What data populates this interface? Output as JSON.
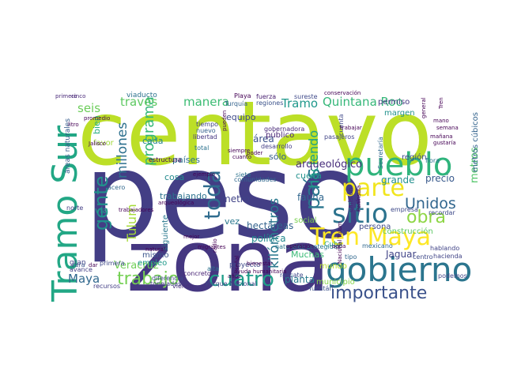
{
  "word_cloud": {
    "background_color": "#ffffff",
    "words": [
      {
        "text": "centavo",
        "color": "#bcdf27"
      },
      {
        "text": "peso",
        "color": "#433e85"
      },
      {
        "text": "zona",
        "color": "#453781"
      },
      {
        "text": "Tramo Sur",
        "color": "#22a785"
      },
      {
        "text": "gobierno",
        "color": "#2b758e"
      },
      {
        "text": "pueblo",
        "color": "#2fb47c"
      },
      {
        "text": "sitio",
        "color": "#2c738e"
      },
      {
        "text": "parte",
        "color": "#f1e51d"
      },
      {
        "text": "Tren Maya",
        "color": "#fde725"
      },
      {
        "text": "cuatro",
        "color": "#1f9e89"
      },
      {
        "text": "país",
        "color": "#2a768e"
      },
      {
        "text": "toda",
        "color": "#2f6c8e"
      },
      {
        "text": "gente",
        "color": "#21918c"
      },
      {
        "text": "trabajo",
        "color": "#75d054"
      },
      {
        "text": "importante",
        "color": "#3b528b"
      },
      {
        "text": "obra",
        "color": "#8ed645"
      },
      {
        "text": "Unidos",
        "color": "#31668e"
      },
      {
        "text": "millones",
        "color": "#2d708e"
      },
      {
        "text": "kilómetros",
        "color": "#2a788e"
      },
      {
        "text": "programa",
        "color": "#35b779"
      },
      {
        "text": "Tramo",
        "color": "#1f988b"
      },
      {
        "text": "Quintana Roo",
        "color": "#35b779"
      },
      {
        "text": "manera",
        "color": "#3dbc74"
      },
      {
        "text": "través",
        "color": "#5ec962"
      },
      {
        "text": "haciendo",
        "color": "#1fa088"
      },
      {
        "text": "Tulum",
        "color": "#a5db36"
      },
      {
        "text": "Maya",
        "color": "#31688e"
      },
      {
        "text": "arqueológico",
        "color": "#472d7b"
      },
      {
        "text": "seis",
        "color": "#6ccd5a"
      },
      {
        "text": "metros",
        "color": "#52c569"
      },
      {
        "text": "Veracruz",
        "color": "#70cf57"
      },
      {
        "text": "política",
        "color": "#23898e"
      },
      {
        "text": "metro",
        "color": "#404387"
      },
      {
        "text": "hectáreas",
        "color": "#33638d"
      },
      {
        "text": "Jaguar",
        "color": "#414487"
      },
      {
        "text": "planta",
        "color": "#297b8e"
      },
      {
        "text": "grande",
        "color": "#218f8d"
      },
      {
        "text": "fauna",
        "color": "#31678e"
      },
      {
        "text": "trabajando",
        "color": "#2c728e"
      },
      {
        "text": "cosa",
        "color": "#238a8d"
      },
      {
        "text": "precio",
        "color": "#38598c"
      },
      {
        "text": "región",
        "color": "#3e4a89"
      },
      {
        "text": "construcción",
        "color": "#5cc863"
      },
      {
        "text": "Muchas",
        "color": "#3aba76"
      },
      {
        "text": "municipio",
        "color": "#86d549"
      },
      {
        "text": "cueva",
        "color": "#21918c"
      },
      {
        "text": "social",
        "color": "#7ad151"
      },
      {
        "text": "sólo",
        "color": "#355f8d"
      },
      {
        "text": "área",
        "color": "#3b528b"
      },
      {
        "text": "permiso",
        "color": "#453882"
      },
      {
        "text": "margen",
        "color": "#21918c"
      },
      {
        "text": "metros cúbicos",
        "color": "#33638d"
      },
      {
        "text": "equipo",
        "color": "#3e4989"
      },
      {
        "text": "países",
        "color": "#2d708e"
      },
      {
        "text": "cada",
        "color": "#25848e"
      },
      {
        "text": "vía",
        "color": "#1f9e89"
      },
      {
        "text": "vez",
        "color": "#2a788e"
      },
      {
        "text": "mismo",
        "color": "#3a548c"
      },
      {
        "text": "empleo",
        "color": "#1f998a"
      },
      {
        "text": "Cuba",
        "color": "#21a685"
      },
      {
        "text": "público",
        "color": "#482475"
      },
      {
        "text": "desarrollo",
        "color": "#433e85"
      },
      {
        "text": "áreas naturales",
        "color": "#365c8d"
      },
      {
        "text": "bien",
        "color": "#26ad81"
      },
      {
        "text": "favor",
        "color": "#a0da39"
      },
      {
        "text": "siguiente",
        "color": "#2a788e"
      },
      {
        "text": "mundo",
        "color": "#b5de2b"
      },
      {
        "text": "persona",
        "color": "#3e4989"
      },
      {
        "text": "proyecto",
        "color": "#3e4a89"
      },
      {
        "text": "siete",
        "color": "#2c728e"
      },
      {
        "text": "comunidades",
        "color": "#31688e"
      },
      {
        "text": "total",
        "color": "#2c728e"
      },
      {
        "text": "gran",
        "color": "#414487"
      },
      {
        "text": "Yucatán",
        "color": "#3b528b"
      },
      {
        "text": "Secretaría",
        "color": "#31688e"
      },
      {
        "text": "tipo",
        "color": "#31688e"
      },
      {
        "text": "fuerza",
        "color": "#482071"
      },
      {
        "text": "Playa",
        "color": "#440154"
      },
      {
        "text": "viaducto",
        "color": "#2c728e"
      },
      {
        "text": "libertad",
        "color": "#453581"
      },
      {
        "text": "tiempo",
        "color": "#414487"
      },
      {
        "text": "nuevo",
        "color": "#355f8d"
      },
      {
        "text": "gobernadora",
        "color": "#482878"
      },
      {
        "text": "regiones",
        "color": "#3b528b"
      },
      {
        "text": "Turquía",
        "color": "#33638d"
      },
      {
        "text": "sureste",
        "color": "#3e4989"
      },
      {
        "text": "pasajeros",
        "color": "#414487"
      },
      {
        "text": "cuenta",
        "color": "#3f4788"
      },
      {
        "text": "estructura",
        "color": "#440154"
      },
      {
        "text": "naturales protegidas",
        "color": "#2a788e"
      },
      {
        "text": "mexicano",
        "color": "#31688e"
      },
      {
        "text": "rescate",
        "color": "#3e4989"
      },
      {
        "text": "concreto",
        "color": "#482475"
      },
      {
        "text": "viendo",
        "color": "#472f7d"
      },
      {
        "text": "alta",
        "color": "#2d708e"
      },
      {
        "text": "recursos",
        "color": "#433e85"
      },
      {
        "text": "avance",
        "color": "#433e85"
      },
      {
        "text": "cara",
        "color": "#3b528b"
      },
      {
        "text": "primera",
        "color": "#3e4989"
      },
      {
        "text": "toneladas",
        "color": "#433e85"
      },
      {
        "text": "diferencia",
        "color": "#3e4989"
      },
      {
        "text": "Parque Nacional",
        "color": "#3f4788"
      },
      {
        "text": "norte",
        "color": "#433e85"
      },
      {
        "text": "acero",
        "color": "#31688e"
      },
      {
        "text": "flora",
        "color": "#2c728e"
      },
      {
        "text": "emisión",
        "color": "#482878"
      },
      {
        "text": "empresa",
        "color": "#3e4989"
      },
      {
        "text": "recordar",
        "color": "#3e4989"
      },
      {
        "text": "hablando",
        "color": "#414487"
      },
      {
        "text": "hacienda",
        "color": "#414487"
      },
      {
        "text": "centro",
        "color": "#3e4989"
      },
      {
        "text": "podemos",
        "color": "#414487"
      },
      {
        "text": "cinco",
        "color": "#482878"
      },
      {
        "text": "primero",
        "color": "#482878"
      },
      {
        "text": "litro",
        "color": "#440154"
      },
      {
        "text": "mano",
        "color": "#440154"
      },
      {
        "text": "semana",
        "color": "#440154"
      },
      {
        "text": "mañana",
        "color": "#440154"
      },
      {
        "text": "gustaría",
        "color": "#440154"
      },
      {
        "text": "poder",
        "color": "#440154"
      },
      {
        "text": "trabajar",
        "color": "#440154"
      },
      {
        "text": "ayuda humanitaria",
        "color": "#440154"
      },
      {
        "text": "bienestar",
        "color": "#440154"
      },
      {
        "text": "pueden",
        "color": "#440154"
      },
      {
        "text": "Tren",
        "color": "#440154"
      },
      {
        "text": "conservación",
        "color": "#440154"
      },
      {
        "text": "general",
        "color": "#440154"
      },
      {
        "text": "Nacional Tulum",
        "color": "#440154"
      },
      {
        "text": "Península",
        "color": "#440154"
      },
      {
        "text": "natural",
        "color": "#440154"
      },
      {
        "text": "radio",
        "color": "#440154"
      },
      {
        "text": "señal",
        "color": "#440154"
      },
      {
        "text": "operación",
        "color": "#440154"
      },
      {
        "text": "años",
        "color": "#440154"
      },
      {
        "text": "agua",
        "color": "#440154"
      },
      {
        "text": "migrantes",
        "color": "#440154"
      },
      {
        "text": "mejor",
        "color": "#440154"
      },
      {
        "text": "promedio",
        "color": "#440154"
      },
      {
        "text": "Jalisco",
        "color": "#440154"
      },
      {
        "text": "dar",
        "color": "#440154"
      },
      {
        "text": "ejemplo",
        "color": "#440154"
      },
      {
        "text": "siempre",
        "color": "#440154"
      },
      {
        "text": "cuanto",
        "color": "#440154"
      },
      {
        "text": "arqueológica",
        "color": "#440154"
      },
      {
        "text": "trabajadores",
        "color": "#440154"
      },
      {
        "text": "camino",
        "color": "#440154"
      },
      {
        "text": "Chetumal",
        "color": "#440154"
      },
      {
        "text": "Cancún",
        "color": "#440154"
      },
      {
        "text": "Mérida",
        "color": "#440154"
      },
      {
        "text": "energía",
        "color": "#440154"
      },
      {
        "text": "nivel",
        "color": "#440154"
      },
      {
        "text": "caso",
        "color": "#440154"
      },
      {
        "text": "obra pública",
        "color": "#440154"
      },
      {
        "text": "vida",
        "color": "#440154"
      },
      {
        "text": "selva",
        "color": "#440154"
      },
      {
        "text": "tramos",
        "color": "#440154"
      },
      {
        "text": "medio ambiente",
        "color": "#440154"
      },
      {
        "text": "zona arqueológica",
        "color": "#440154"
      },
      {
        "text": "cenote",
        "color": "#440154"
      },
      {
        "text": "ciudad",
        "color": "#440154"
      },
      {
        "text": "visitantes",
        "color": "#440154"
      },
      {
        "text": "Tabasco",
        "color": "#440154"
      },
      {
        "text": "Campeche",
        "color": "#440154"
      },
      {
        "text": "tierra",
        "color": "#440154"
      },
      {
        "text": "hoy",
        "color": "#440154"
      },
      {
        "text": "mil",
        "color": "#440154"
      },
      {
        "text": "uso",
        "color": "#440154"
      },
      {
        "text": "mar",
        "color": "#440154"
      },
      {
        "text": "día",
        "color": "#440154"
      },
      {
        "text": "año",
        "color": "#440154"
      }
    ]
  }
}
